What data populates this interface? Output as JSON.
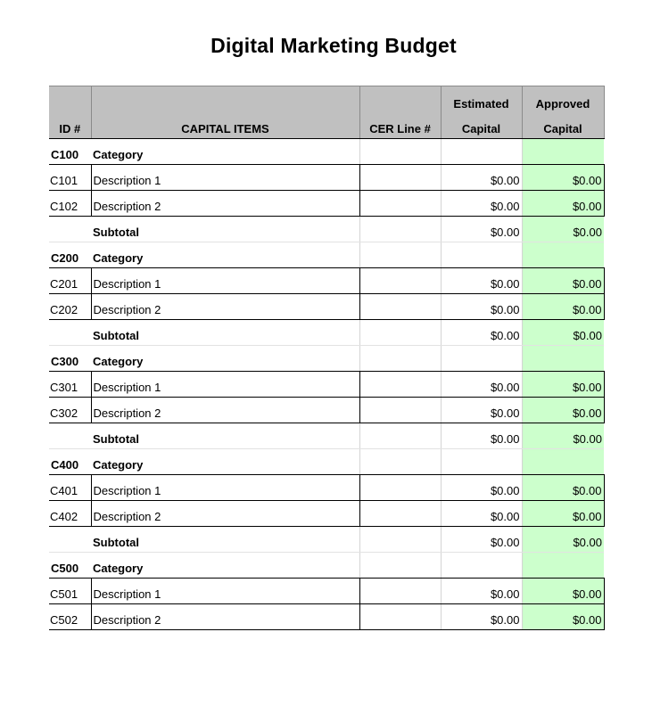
{
  "title": "Digital Marketing Budget",
  "headers": {
    "id": "ID #",
    "items": "CAPITAL ITEMS",
    "cer": "CER Line #",
    "estimated_top": "Estimated",
    "estimated_bottom": "Capital",
    "approved_top": "Approved",
    "approved_bottom": "Capital"
  },
  "groups": [
    {
      "id": "C100",
      "label": "Category",
      "items": [
        {
          "id": "C101",
          "desc": "Description 1",
          "cer": "",
          "estimated": "$0.00",
          "approved": "$0.00"
        },
        {
          "id": "C102",
          "desc": "Description 2",
          "cer": "",
          "estimated": "$0.00",
          "approved": "$0.00"
        }
      ],
      "subtotal": {
        "label": "Subtotal",
        "estimated": "$0.00",
        "approved": "$0.00"
      }
    },
    {
      "id": "C200",
      "label": "Category",
      "items": [
        {
          "id": "C201",
          "desc": "Description 1",
          "cer": "",
          "estimated": "$0.00",
          "approved": "$0.00"
        },
        {
          "id": "C202",
          "desc": "Description 2",
          "cer": "",
          "estimated": "$0.00",
          "approved": "$0.00"
        }
      ],
      "subtotal": {
        "label": "Subtotal",
        "estimated": "$0.00",
        "approved": "$0.00"
      }
    },
    {
      "id": "C300",
      "label": "Category",
      "items": [
        {
          "id": "C301",
          "desc": "Description 1",
          "cer": "",
          "estimated": "$0.00",
          "approved": "$0.00"
        },
        {
          "id": "C302",
          "desc": "Description 2",
          "cer": "",
          "estimated": "$0.00",
          "approved": "$0.00"
        }
      ],
      "subtotal": {
        "label": "Subtotal",
        "estimated": "$0.00",
        "approved": "$0.00"
      }
    },
    {
      "id": "C400",
      "label": "Category",
      "items": [
        {
          "id": "C401",
          "desc": "Description 1",
          "cer": "",
          "estimated": "$0.00",
          "approved": "$0.00"
        },
        {
          "id": "C402",
          "desc": "Description 2",
          "cer": "",
          "estimated": "$0.00",
          "approved": "$0.00"
        }
      ],
      "subtotal": {
        "label": "Subtotal",
        "estimated": "$0.00",
        "approved": "$0.00"
      }
    },
    {
      "id": "C500",
      "label": "Category",
      "items": [
        {
          "id": "C501",
          "desc": "Description 1",
          "cer": "",
          "estimated": "$0.00",
          "approved": "$0.00"
        },
        {
          "id": "C502",
          "desc": "Description 2",
          "cer": "",
          "estimated": "$0.00",
          "approved": "$0.00"
        }
      ]
    }
  ],
  "colors": {
    "header_bg": "#c0c0c0",
    "approved_bg": "#ccffcc"
  }
}
